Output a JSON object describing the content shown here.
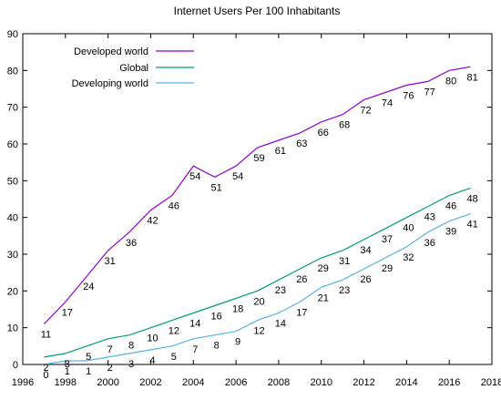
{
  "chart_data": {
    "type": "line",
    "title": "Internet Users Per 100 Inhabitants",
    "xlabel": "",
    "ylabel": "",
    "xlim": [
      1996,
      2018
    ],
    "ylim": [
      0,
      90
    ],
    "x_ticks": [
      "1996",
      "1998",
      "2000",
      "2002",
      "2004",
      "2006",
      "2008",
      "2010",
      "2012",
      "2014",
      "2016",
      "2018"
    ],
    "y_ticks": [
      "0",
      "10",
      "20",
      "30",
      "40",
      "50",
      "60",
      "70",
      "80",
      "90"
    ],
    "grid": false,
    "legend_position": "top-left",
    "x": [
      1997,
      1998,
      1999,
      2000,
      2001,
      2002,
      2003,
      2004,
      2005,
      2006,
      2007,
      2008,
      2009,
      2010,
      2011,
      2012,
      2013,
      2014,
      2015,
      2016,
      2017
    ],
    "series": [
      {
        "name": "Developed world",
        "color": "#9400d3",
        "values": [
          11,
          17,
          24,
          31,
          36,
          42,
          46,
          54,
          51,
          54,
          59,
          61,
          63,
          66,
          68,
          72,
          74,
          76,
          77,
          80,
          81
        ],
        "labels": [
          "11",
          "17",
          "24",
          "31",
          "36",
          "42",
          "46",
          "54",
          "51",
          "54",
          "59",
          "61",
          "63",
          "66",
          "68",
          "72",
          "74",
          "76",
          "77",
          "80",
          "81"
        ]
      },
      {
        "name": "Global",
        "color": "#009e73",
        "values": [
          2,
          3,
          5,
          7,
          8,
          10,
          12,
          14,
          16,
          18,
          20,
          23,
          26,
          29,
          31,
          34,
          37,
          40,
          43,
          46,
          48
        ],
        "labels": [
          "2",
          "3",
          "5",
          "7",
          "8",
          "10",
          "12",
          "14",
          "16",
          "18",
          "20",
          "23",
          "26",
          "29",
          "31",
          "34",
          "37",
          "40",
          "43",
          "46",
          "48"
        ]
      },
      {
        "name": "Developing world",
        "color": "#56b4e9",
        "values": [
          0,
          1,
          1,
          2,
          3,
          4,
          5,
          7,
          8,
          9,
          12,
          14,
          17,
          21,
          23,
          26,
          29,
          32,
          36,
          39,
          41
        ],
        "labels": [
          "0",
          "1",
          "1",
          "2",
          "3",
          "4",
          "5",
          "7",
          "8",
          "9",
          "12",
          "14",
          "17",
          "21",
          "23",
          "26",
          "29",
          "32",
          "36",
          "39",
          "41"
        ]
      }
    ]
  }
}
